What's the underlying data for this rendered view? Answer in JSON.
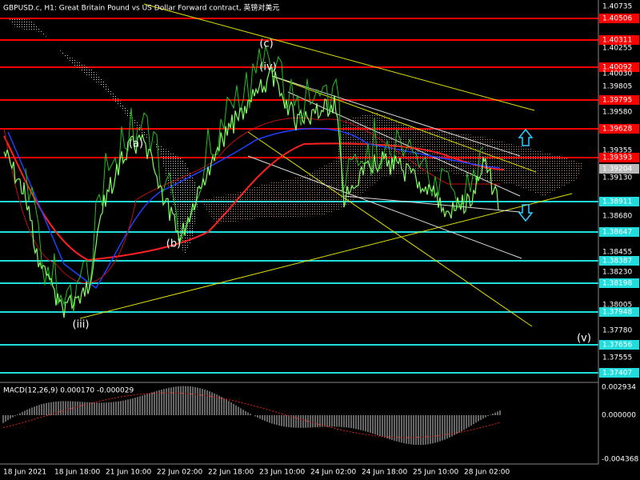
{
  "header": {
    "title": "GBPUSD.c, H1:  Great Britain Pound vs US Dollar Forward contract, 英镑对美元"
  },
  "price_axis": [
    "1.40735",
    "1.40506",
    "1.40311",
    "1.40255",
    "1.40092",
    "1.40030",
    "1.39805",
    "1.39795",
    "1.39580",
    "1.39628",
    "1.39355",
    "1.39393",
    "1.39204",
    "1.39130",
    "1.38911",
    "1.38680",
    "1.38647",
    "1.38455",
    "1.38387",
    "1.38230",
    "1.38198",
    "1.38005",
    "1.37948",
    "1.37780",
    "1.37656",
    "1.37555",
    "1.37407"
  ],
  "wave_labels": [
    "(c)",
    "(iv)",
    "(a)",
    "(b)",
    "(iii)",
    "(v)"
  ],
  "macd_panel": {
    "title": "MACD(12,26,9) 0.000170 -0.000029",
    "axis": [
      "0.002934",
      "0.000000",
      "-0.004368"
    ]
  },
  "time_axis": [
    "18 Jun 2021",
    "18 Jun 18:00",
    "21 Jun 10:00",
    "22 Jun 02:00",
    "22 Jun 18:00",
    "23 Jun 10:00",
    "24 Jun 02:00",
    "24 Jun 18:00",
    "25 Jun 10:00",
    "28 Jun 02:00"
  ]
}
